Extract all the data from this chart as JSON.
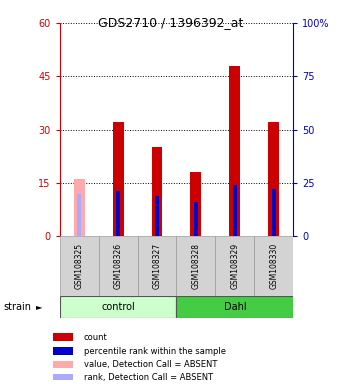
{
  "title": "GDS2710 / 1396392_at",
  "samples": [
    "GSM108325",
    "GSM108326",
    "GSM108327",
    "GSM108328",
    "GSM108329",
    "GSM108330"
  ],
  "groups": [
    "control",
    "control",
    "control",
    "Dahl",
    "Dahl",
    "Dahl"
  ],
  "count_values": [
    0,
    32,
    25,
    18,
    48,
    32
  ],
  "rank_values": [
    0,
    21,
    19,
    16,
    24,
    22
  ],
  "absent_value": 16,
  "absent_rank": 20,
  "absent_sample_idx": 0,
  "ylim_left": [
    0,
    60
  ],
  "ylim_right": [
    0,
    100
  ],
  "yticks_left": [
    0,
    15,
    30,
    45,
    60
  ],
  "yticks_right": [
    0,
    25,
    50,
    75,
    100
  ],
  "ytick_labels_left": [
    "0",
    "15",
    "30",
    "45",
    "60"
  ],
  "ytick_labels_right": [
    "0",
    "25",
    "50",
    "75",
    "100%"
  ],
  "count_color": "#cc0000",
  "rank_color": "#0000cc",
  "absent_count_color": "#ffaaaa",
  "absent_rank_color": "#aaaaff",
  "legend_items": [
    {
      "color": "#cc0000",
      "label": "count"
    },
    {
      "color": "#0000cc",
      "label": "percentile rank within the sample"
    },
    {
      "color": "#ffaaaa",
      "label": "value, Detection Call = ABSENT"
    },
    {
      "color": "#aaaaff",
      "label": "rank, Detection Call = ABSENT"
    }
  ]
}
